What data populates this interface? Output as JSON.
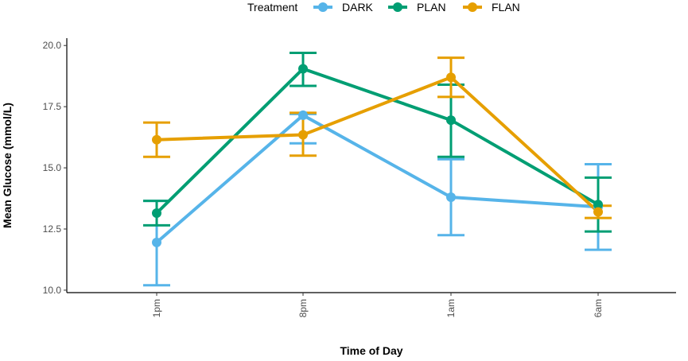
{
  "chart_data": {
    "type": "line",
    "title": "",
    "xlabel": "Time of Day",
    "ylabel": "Mean Glucose (mmol/L)",
    "categories": [
      "1pm",
      "8pm",
      "1am",
      "6am"
    ],
    "ylim": [
      9.9,
      20.3
    ],
    "yticks": [
      10.0,
      12.5,
      15.0,
      17.5,
      20.0
    ],
    "ytick_labels": [
      "10.0",
      "12.5",
      "15.0",
      "17.5",
      "20.0"
    ],
    "legend": {
      "title": "Treatment",
      "placement": "top"
    },
    "error_bars": true,
    "series": [
      {
        "name": "DARK",
        "color": "#56B4E9",
        "values": [
          11.95,
          17.15,
          13.8,
          13.4
        ],
        "lower": [
          10.2,
          16.0,
          12.25,
          11.65
        ],
        "upper": [
          13.65,
          17.2,
          15.35,
          15.15
        ]
      },
      {
        "name": "PLAN",
        "color": "#009E73",
        "values": [
          13.15,
          19.05,
          16.95,
          13.5
        ],
        "lower": [
          12.65,
          18.35,
          15.45,
          12.4
        ],
        "upper": [
          13.65,
          19.7,
          18.4,
          14.6
        ]
      },
      {
        "name": "FLAN",
        "color": "#E69F00",
        "values": [
          16.15,
          16.35,
          18.7,
          13.2
        ],
        "lower": [
          15.45,
          15.5,
          17.9,
          12.95
        ],
        "upper": [
          16.85,
          17.25,
          19.5,
          13.45
        ]
      }
    ]
  }
}
